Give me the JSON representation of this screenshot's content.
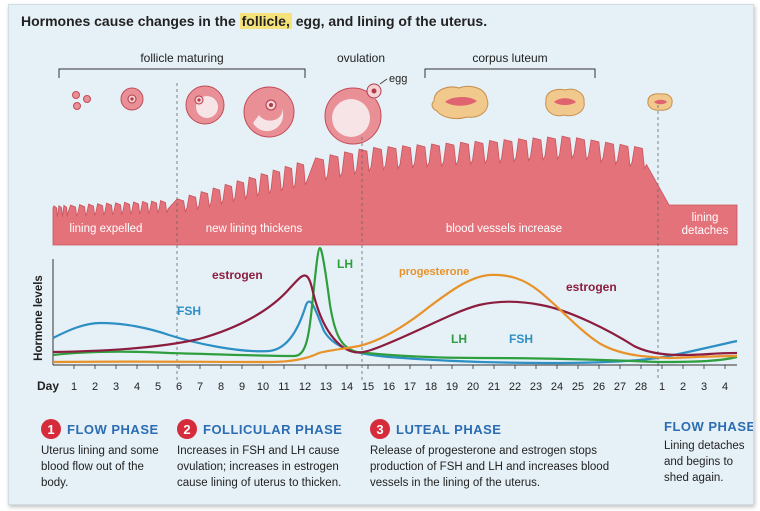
{
  "headline": {
    "before": "Hormones cause changes in the ",
    "highlight": "follicle,",
    "after": " egg, and lining of the uterus."
  },
  "stages": {
    "follicle_maturing": "follicle maturing",
    "ovulation": "ovulation",
    "egg": "egg",
    "corpus_luteum": "corpus luteum"
  },
  "lining_labels": {
    "expelled": "lining expelled",
    "thickens": "new lining thickens",
    "vessels": "blood vessels increase",
    "detaches_1": "lining",
    "detaches_2": "detaches"
  },
  "chart": {
    "ylabel": "Hormone levels",
    "x_prefix": "Day",
    "days": [
      1,
      2,
      3,
      4,
      5,
      6,
      7,
      8,
      9,
      10,
      11,
      12,
      13,
      14,
      15,
      16,
      17,
      18,
      19,
      20,
      21,
      22,
      23,
      24,
      25,
      26,
      27,
      28,
      1,
      2,
      3,
      4
    ],
    "series_labels": {
      "estrogen": "estrogen",
      "lh": "LH",
      "fsh": "FSH",
      "progesterone": "progesterone",
      "estrogen2": "estrogen",
      "lh2": "LH",
      "fsh2": "FSH"
    },
    "colors": {
      "estrogen": "#8c1d3f",
      "lh": "#2e9e3e",
      "fsh": "#2d8fc4",
      "progesterone": "#e8922a",
      "lining": "#e4727a",
      "badge": "#d62b3a",
      "phase_title": "#2b6cb3"
    }
  },
  "phases": [
    {
      "num": "1",
      "title": "FLOW PHASE",
      "desc": "Uterus lining and some blood flow out of the body."
    },
    {
      "num": "2",
      "title": "FOLLICULAR PHASE",
      "desc": "Increases in FSH and LH cause ovulation; increases in estrogen cause lining of uterus to thicken."
    },
    {
      "num": "3",
      "title": "LUTEAL PHASE",
      "desc": "Release of progesterone and estrogen stops production of FSH and LH and increases blood vessels in the lining of the uterus."
    },
    {
      "num": "",
      "title": "FLOW PHASE",
      "desc": "Lining detaches and begins to shed again."
    }
  ]
}
